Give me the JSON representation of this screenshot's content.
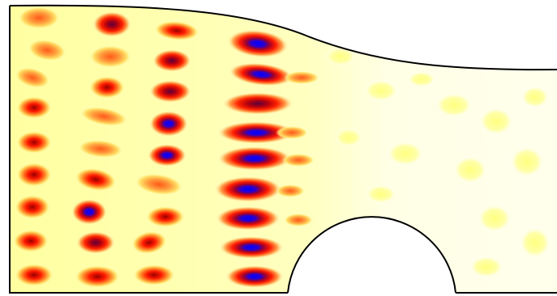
{
  "figure": {
    "kind": "field-plot",
    "colormap": [
      "#ffffff",
      "#ffff99",
      "#ffa64d",
      "#ff2200",
      "#a00000",
      "#0000dd",
      "#000040"
    ],
    "background": "#ffffff",
    "outline_color": "#000000"
  }
}
